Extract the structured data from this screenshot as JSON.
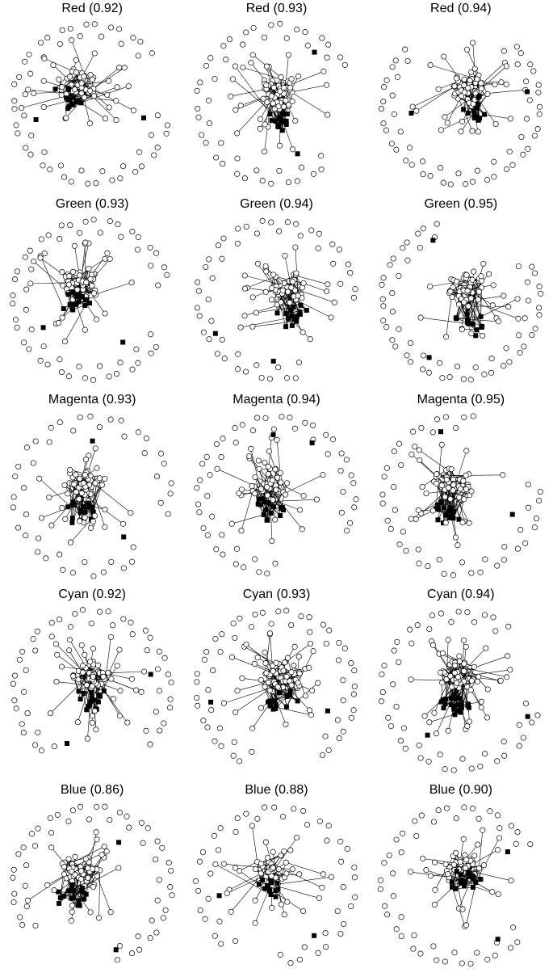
{
  "panels": [
    {
      "title": "Red (0.92)"
    },
    {
      "title": "Red (0.93)"
    },
    {
      "title": "Red (0.94)"
    },
    {
      "title": "Green (0.93)"
    },
    {
      "title": "Green (0.94)"
    },
    {
      "title": "Green (0.95)"
    },
    {
      "title": "Magenta (0.93)"
    },
    {
      "title": "Magenta (0.94)"
    },
    {
      "title": "Magenta (0.95)"
    },
    {
      "title": "Cyan (0.92)"
    },
    {
      "title": "Cyan (0.93)"
    },
    {
      "title": "Cyan (0.94)"
    },
    {
      "title": "Blue (0.86)"
    },
    {
      "title": "Blue (0.88)"
    },
    {
      "title": "Blue (0.90)"
    }
  ],
  "legend_styles": {
    "open_node_fill": "#ffffff",
    "open_node_stroke": "#000000",
    "square_node_fill": "#000000",
    "edge_color": "#000000"
  }
}
